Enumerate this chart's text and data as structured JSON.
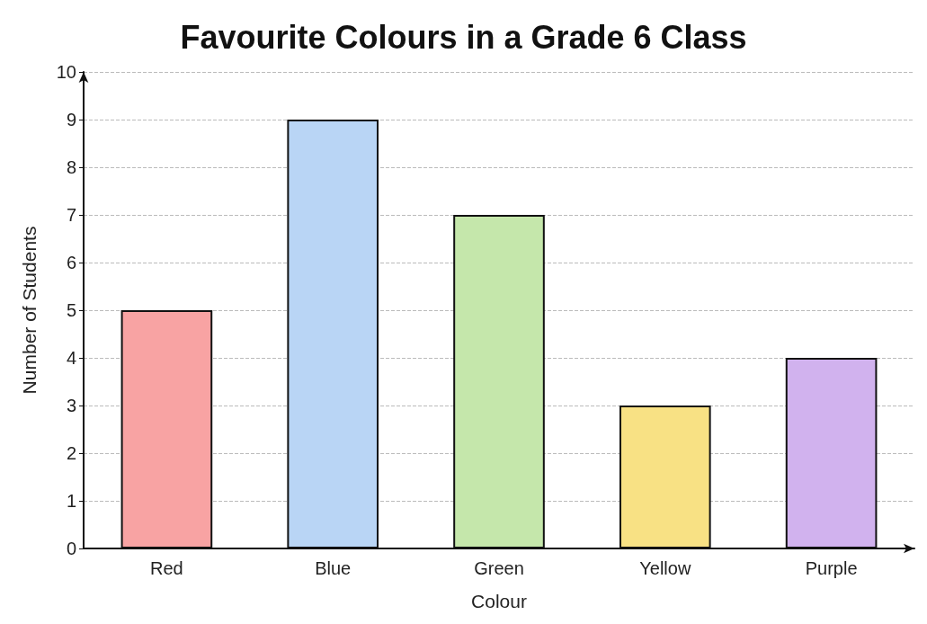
{
  "chart_data": {
    "type": "bar",
    "title": "Favourite Colours in a Grade 6 Class",
    "xlabel": "Colour",
    "ylabel": "Number of Students",
    "categories": [
      "Red",
      "Blue",
      "Green",
      "Yellow",
      "Purple"
    ],
    "values": [
      5,
      9,
      7,
      3,
      4
    ],
    "colors": [
      "#f8a3a3",
      "#b9d5f5",
      "#c5e7ab",
      "#f8e184",
      "#d1b2ee"
    ],
    "ylim": [
      0,
      10
    ],
    "yticks": [
      0,
      1,
      2,
      3,
      4,
      5,
      6,
      7,
      8,
      9,
      10
    ],
    "grid": "y"
  }
}
